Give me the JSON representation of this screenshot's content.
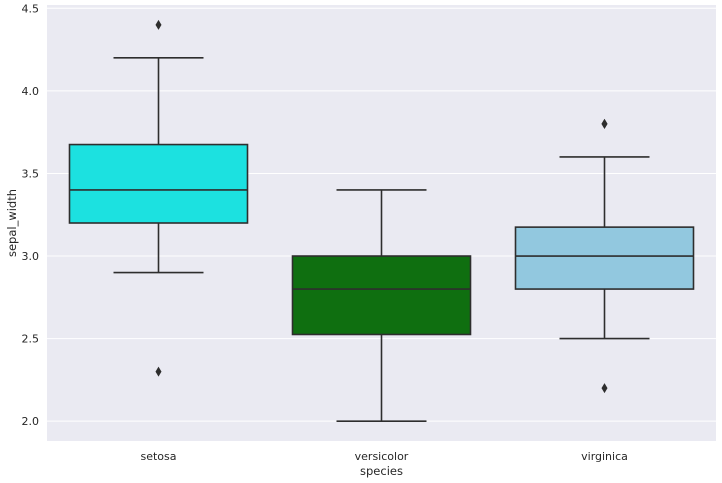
{
  "chart_data": {
    "type": "box",
    "xlabel": "species",
    "ylabel": "sepal_width",
    "ylim": [
      1.88,
      4.52
    ],
    "yticks": [
      "2.0",
      "2.5",
      "3.0",
      "3.5",
      "4.0",
      "4.5"
    ],
    "grid": true,
    "background": "#eaeaf2",
    "grid_color": "#ffffff",
    "line_color": "#2e2e2e",
    "categories": [
      "setosa",
      "versicolor",
      "virginica"
    ],
    "boxes": [
      {
        "category": "setosa",
        "color": "#1ce1e0",
        "q1": 3.2,
        "median": 3.4,
        "q3": 3.675,
        "whisker_low": 2.9,
        "whisker_high": 4.2,
        "outliers": [
          4.4,
          2.3
        ]
      },
      {
        "category": "versicolor",
        "color": "#0f6f10",
        "q1": 2.525,
        "median": 2.8,
        "q3": 3.0,
        "whisker_low": 2.0,
        "whisker_high": 3.4,
        "outliers": []
      },
      {
        "category": "virginica",
        "color": "#92c8df",
        "q1": 2.8,
        "median": 3.0,
        "q3": 3.175,
        "whisker_low": 2.5,
        "whisker_high": 3.6,
        "outliers": [
          3.8,
          3.8,
          2.2
        ]
      }
    ]
  }
}
